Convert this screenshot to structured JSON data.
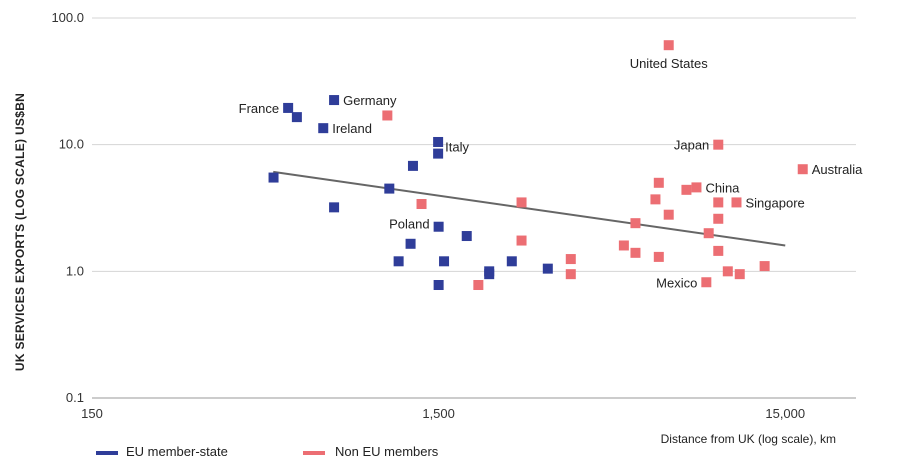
{
  "chart_data": {
    "type": "scatter",
    "ylabel": "UK SERVICES EXPORTS (LOG SCALE) US$BN",
    "xlabel": "Distance from UK (log scale), km",
    "x_scale": "log",
    "y_scale": "log",
    "xlim": [
      150,
      24000
    ],
    "ylim": [
      0.1,
      100
    ],
    "x_ticks": [
      "150",
      "1,500",
      "15,000"
    ],
    "x_tick_values": [
      150,
      1500,
      15000
    ],
    "y_ticks": [
      "0.1",
      "1.0",
      "10.0",
      "100.0"
    ],
    "y_tick_values": [
      0.1,
      1,
      10,
      100
    ],
    "grid": "horizontal",
    "legend": [
      {
        "name": "EU member-state",
        "color": "#2f3d99"
      },
      {
        "name": "Non EU members",
        "color": "#ec6e73"
      }
    ],
    "trendline": {
      "x": [
        500,
        15000
      ],
      "y": [
        6.1,
        1.6
      ],
      "color": "#666666"
    },
    "series": [
      {
        "name": "EU member-state",
        "color": "#2f3d99",
        "points": [
          {
            "x": 552,
            "y": 19.5,
            "label": "France"
          },
          {
            "x": 749,
            "y": 22.5,
            "label": "Germany"
          },
          {
            "x": 697,
            "y": 13.5,
            "label": "Ireland"
          },
          {
            "x": 1495,
            "y": 8.5,
            "label": "Italy"
          },
          {
            "x": 1500,
            "y": 2.25,
            "label": "Poland"
          },
          {
            "x": 585,
            "y": 16.5
          },
          {
            "x": 501,
            "y": 5.5
          },
          {
            "x": 749,
            "y": 3.2
          },
          {
            "x": 1265,
            "y": 6.8
          },
          {
            "x": 1495,
            "y": 10.5
          },
          {
            "x": 1081,
            "y": 4.5
          },
          {
            "x": 1245,
            "y": 1.65
          },
          {
            "x": 1150,
            "y": 1.2
          },
          {
            "x": 1500,
            "y": 0.78
          },
          {
            "x": 1555,
            "y": 1.2
          },
          {
            "x": 1808,
            "y": 1.9
          },
          {
            "x": 2099,
            "y": 1.0
          },
          {
            "x": 2439,
            "y": 1.2
          },
          {
            "x": 3098,
            "y": 1.05
          },
          {
            "x": 2099,
            "y": 0.95
          }
        ]
      },
      {
        "name": "Non EU members",
        "color": "#ec6e73",
        "points": [
          {
            "x": 6917,
            "y": 61,
            "label": "United States"
          },
          {
            "x": 9614,
            "y": 10.0,
            "label": "Japan"
          },
          {
            "x": 16848,
            "y": 6.4,
            "label": "Australia"
          },
          {
            "x": 8316,
            "y": 4.6,
            "label": "China"
          },
          {
            "x": 10850,
            "y": 3.5,
            "label": "Singapore"
          },
          {
            "x": 8880,
            "y": 0.82,
            "label": "Mexico"
          },
          {
            "x": 1067,
            "y": 17
          },
          {
            "x": 1339,
            "y": 3.4
          },
          {
            "x": 2602,
            "y": 3.5
          },
          {
            "x": 2602,
            "y": 1.75
          },
          {
            "x": 1953,
            "y": 0.78
          },
          {
            "x": 3609,
            "y": 1.25
          },
          {
            "x": 3609,
            "y": 0.95
          },
          {
            "x": 5135,
            "y": 1.6
          },
          {
            "x": 5546,
            "y": 2.4
          },
          {
            "x": 5546,
            "y": 1.4
          },
          {
            "x": 6476,
            "y": 5.0
          },
          {
            "x": 6333,
            "y": 3.7
          },
          {
            "x": 6476,
            "y": 1.3
          },
          {
            "x": 6917,
            "y": 2.8
          },
          {
            "x": 7781,
            "y": 4.4
          },
          {
            "x": 9021,
            "y": 2.0
          },
          {
            "x": 9614,
            "y": 3.5
          },
          {
            "x": 9614,
            "y": 2.6
          },
          {
            "x": 9614,
            "y": 1.45
          },
          {
            "x": 10242,
            "y": 1.0
          },
          {
            "x": 11087,
            "y": 0.95
          },
          {
            "x": 13080,
            "y": 1.1
          }
        ]
      }
    ]
  }
}
